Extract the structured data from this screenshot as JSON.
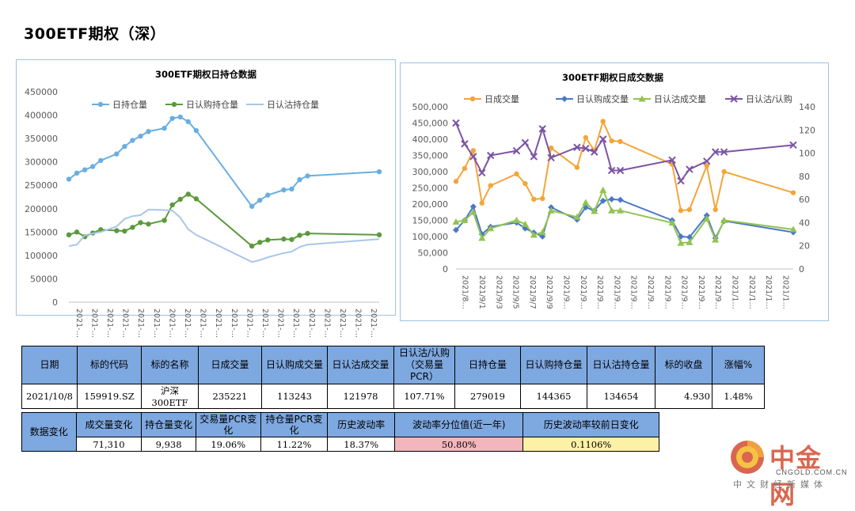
{
  "page": {
    "title": "300ETF期权（深）"
  },
  "colors": {
    "hold": "#6aaee0",
    "call_hold": "#5a9a3c",
    "put_hold": "#a9c6ea",
    "volume": "#f4a53a",
    "call_vol": "#4a78c8",
    "put_vol": "#92c353",
    "ratio": "#7b54a6",
    "header_blue": "#7ea8e0",
    "row_header_blue": "#4f86d8",
    "highlight_pink": "#f4b6bd",
    "highlight_yellow": "#fdf1a6"
  },
  "chart_data": [
    {
      "type": "line",
      "title": "300ETF期权日持仓数据",
      "legend_position": "top",
      "grid": false,
      "ylim": [
        0,
        450000
      ],
      "yticks": [
        "450000",
        "400000",
        "350000",
        "300000",
        "250000",
        "200000",
        "150000",
        "100000",
        "50000",
        "0"
      ],
      "xticks": [
        "2021-…",
        "2021-…",
        "2021-…",
        "2021-…",
        "2021-…",
        "2021-…",
        "2021-…",
        "2021-…",
        "2021-…",
        "2021-…",
        "2021-…",
        "2021-…",
        "2021-…",
        "2021-…",
        "2021-…",
        "2021-…",
        "2021-…",
        "2021-…",
        "2021-…",
        "2021-…"
      ],
      "x": [
        0,
        1,
        2,
        3,
        4,
        6,
        7,
        8,
        9,
        10,
        12,
        13,
        14,
        15,
        16,
        23,
        24,
        25,
        27,
        28,
        29,
        30,
        39
      ],
      "series": [
        {
          "name": "日持仓量",
          "values": [
            263000,
            276000,
            283000,
            290000,
            303000,
            317000,
            333000,
            346000,
            355000,
            365000,
            372000,
            393000,
            396000,
            386000,
            367000,
            205000,
            218000,
            229000,
            240000,
            242000,
            262000,
            270000,
            279000
          ]
        },
        {
          "name": "日认购持仓量",
          "values": [
            144000,
            150000,
            140000,
            148000,
            155000,
            153000,
            152000,
            160000,
            170000,
            167000,
            175000,
            208000,
            220000,
            231000,
            221000,
            120000,
            128000,
            133000,
            135000,
            134000,
            143000,
            147000,
            144000
          ]
        },
        {
          "name": "日认沽持仓量",
          "values": [
            120000,
            123000,
            143000,
            147000,
            150000,
            162000,
            178000,
            184000,
            186000,
            198000,
            197000,
            196000,
            181000,
            156000,
            144000,
            86000,
            90000,
            96000,
            105000,
            108000,
            118000,
            123000,
            135000
          ]
        }
      ]
    },
    {
      "type": "line",
      "title": "300ETF期权日成交数据",
      "legend_position": "top",
      "grid": false,
      "ylim": [
        0,
        500000
      ],
      "y2lim": [
        0,
        140
      ],
      "yticks": [
        "500,000",
        "450,000",
        "400,000",
        "350,000",
        "300,000",
        "250,000",
        "200,000",
        "150,000",
        "100,000",
        "50,000",
        "0"
      ],
      "y2ticks": [
        "140",
        "120",
        "100",
        "80",
        "60",
        "40",
        "20",
        "0"
      ],
      "xticks": [
        "2021/8…",
        "2021/9/1",
        "2021/9/3",
        "2021/9/5",
        "2021/9/7",
        "2021/9/9",
        "2021/9…",
        "2021/9…",
        "2021/9…",
        "2021/9…",
        "2021/9…",
        "2021/9…",
        "2021/9…",
        "2021/9…",
        "2021/9…",
        "2021/9…",
        "2021/1…",
        "2021/1…",
        "2021/1…",
        "2021/1…"
      ],
      "x": [
        0,
        1,
        2,
        3,
        4,
        7,
        8,
        9,
        10,
        11,
        14,
        15,
        16,
        17,
        18,
        19,
        25,
        26,
        27,
        29,
        30,
        31,
        39
      ],
      "series": [
        {
          "name": "日成交量",
          "axis": "left",
          "values": [
            270000,
            310000,
            365000,
            203000,
            257000,
            293000,
            263000,
            215000,
            217000,
            373000,
            313000,
            405000,
            365000,
            455000,
            395000,
            393000,
            323000,
            180000,
            183000,
            318000,
            183000,
            300000,
            235000
          ]
        },
        {
          "name": "日认购成交量",
          "axis": "left",
          "values": [
            120000,
            150000,
            192000,
            107000,
            130000,
            143000,
            125000,
            112000,
            100000,
            190000,
            152000,
            190000,
            180000,
            210000,
            215000,
            213000,
            150000,
            100000,
            98000,
            165000,
            95000,
            148000,
            113000
          ]
        },
        {
          "name": "日认沽成交量",
          "axis": "left",
          "values": [
            145000,
            150000,
            175000,
            95000,
            125000,
            150000,
            138000,
            105000,
            113000,
            180000,
            160000,
            205000,
            178000,
            243000,
            180000,
            180000,
            142000,
            80000,
            82000,
            155000,
            90000,
            150000,
            122000
          ]
        },
        {
          "name": "日认沽/认购",
          "axis": "right",
          "values": [
            126,
            108,
            97,
            83,
            98,
            102,
            109,
            97,
            121,
            96,
            105,
            104,
            101,
            112,
            85,
            85,
            94,
            76,
            86,
            93,
            101,
            101,
            107
          ]
        }
      ]
    }
  ],
  "summary_table": {
    "headers": [
      "日期",
      "标的代码",
      "标的名称",
      "日成交量",
      "日认购成交量",
      "日认沽成交量",
      "日认沽/认购（交易量PCR）",
      "日持仓量",
      "日认购持仓量",
      "日认沽持仓量",
      "标的收盘",
      "涨幅%"
    ],
    "values": [
      "2021/10/8",
      "159919.SZ",
      "沪深300ETF",
      "235221",
      "113243",
      "121978",
      "107.71%",
      "279019",
      "144365",
      "134654",
      "4.930",
      "1.48%"
    ]
  },
  "change_table": {
    "row_header": "数据变化",
    "headers": [
      "成交量变化",
      "持仓量变化",
      "交易量PCR变化",
      "持仓量PCR变化",
      "历史波动率",
      "波动率分位值(近一年)",
      "历史波动率较前日变化"
    ],
    "values": [
      "71,310",
      "9,938",
      "19.06%",
      "11.22%",
      "18.37%",
      "50.80%",
      "0.1106%"
    ]
  },
  "logo": {
    "name": "中金网",
    "domain": "CNGOLD.COM.CN",
    "tagline": "中文财经新媒体"
  }
}
